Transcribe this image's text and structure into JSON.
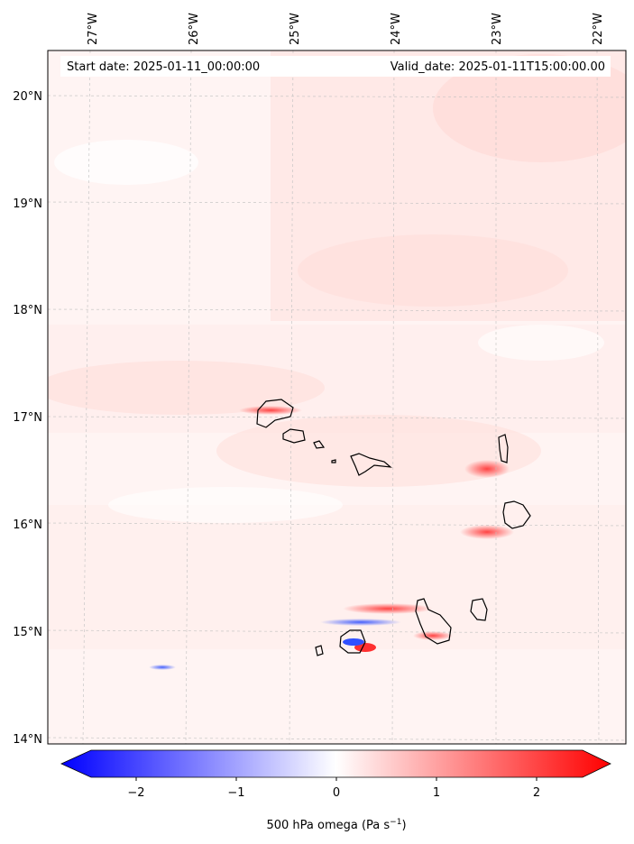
{
  "header": {
    "start_date": "Start date: 2025-01-11_00:00:00",
    "valid_date": "Valid_date: 2025-01-11T15:00:00.00"
  },
  "axes": {
    "lon_ticks": [
      "27°W",
      "26°W",
      "25°W",
      "24°W",
      "23°W",
      "22°W"
    ],
    "lat_ticks": [
      "20°N",
      "19°N",
      "18°N",
      "17°N",
      "16°N",
      "15°N",
      "14°N"
    ]
  },
  "colorbar": {
    "ticks": [
      "−2",
      "−1",
      "0",
      "1",
      "2"
    ],
    "tick_values": [
      -2,
      -1,
      0,
      1,
      2
    ],
    "range": [
      -2.5,
      2.5
    ],
    "label_main": "500 hPa omega (Pa s",
    "label_sup": "−1",
    "label_end": ")",
    "colors": {
      "negative": "#0000ff",
      "zero": "#ffffff",
      "positive": "#ff0000"
    }
  },
  "chart_data": {
    "type": "heatmap",
    "title": "",
    "variable": "500 hPa omega",
    "units": "Pa s−1",
    "lon_range": [
      -27.3,
      -21.8
    ],
    "lat_range": [
      13.95,
      20.4
    ],
    "note": "Mostly weak positive (light red) values, strongest near islands"
  }
}
